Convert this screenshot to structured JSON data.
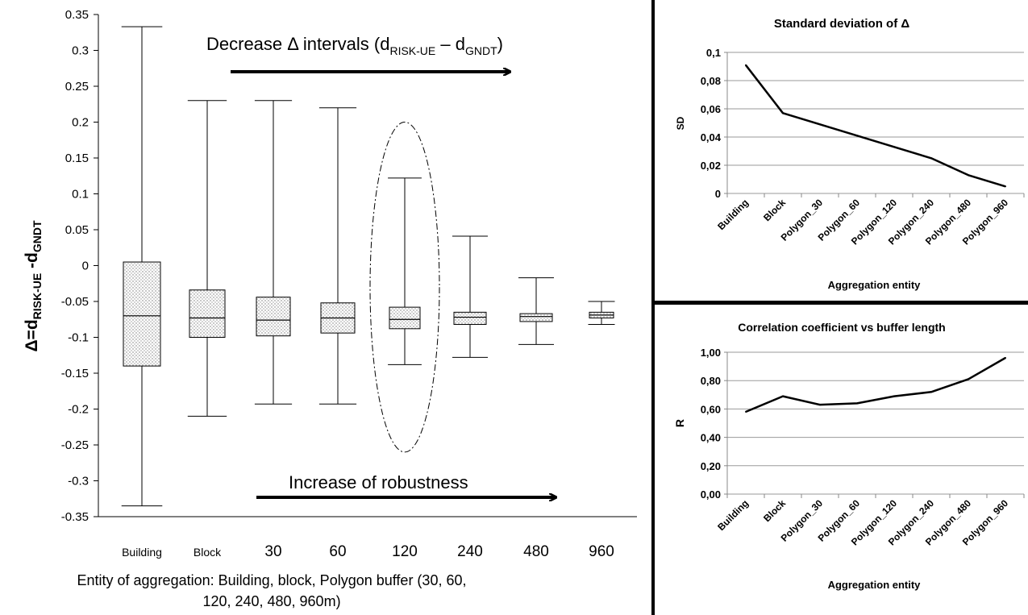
{
  "chart_data": [
    {
      "type": "box",
      "categories": [
        "Building",
        "Block",
        "30",
        "60",
        "120",
        "240",
        "480",
        "960"
      ],
      "boxes": [
        {
          "category": "Building",
          "min": -0.335,
          "q1": -0.14,
          "median": -0.07,
          "q3": 0.005,
          "max": 0.333
        },
        {
          "category": "Block",
          "min": -0.21,
          "q1": -0.1,
          "median": -0.073,
          "q3": -0.034,
          "max": 0.23
        },
        {
          "category": "30",
          "min": -0.193,
          "q1": -0.098,
          "median": -0.076,
          "q3": -0.044,
          "max": 0.23
        },
        {
          "category": "60",
          "min": -0.193,
          "q1": -0.094,
          "median": -0.073,
          "q3": -0.052,
          "max": 0.22
        },
        {
          "category": "120",
          "min": -0.138,
          "q1": -0.088,
          "median": -0.075,
          "q3": -0.058,
          "max": 0.122
        },
        {
          "category": "240",
          "min": -0.128,
          "q1": -0.082,
          "median": -0.072,
          "q3": -0.065,
          "max": 0.041
        },
        {
          "category": "480",
          "min": -0.11,
          "q1": -0.078,
          "median": -0.071,
          "q3": -0.067,
          "max": -0.017
        },
        {
          "category": "960",
          "min": -0.082,
          "q1": -0.073,
          "median": -0.069,
          "q3": -0.065,
          "max": -0.05
        }
      ],
      "ylim": [
        -0.35,
        0.35
      ],
      "yticks": [
        "0.35",
        "0.3",
        "0.25",
        "0.2",
        "0.15",
        "0.1",
        "0.05",
        "0",
        "-0.05",
        "-0.1",
        "-0.15",
        "-0.2",
        "-0.25",
        "-0.3",
        "-0.35"
      ],
      "ylabel_main": "Δ=d",
      "ylabel_sub1": "RISK-UE",
      "ylabel_mid": " -d",
      "ylabel_sub2": "GNDT",
      "xlabel_line1": "Entity of aggregation: Building, block, Polygon buffer (30, 60,",
      "xlabel_line2": "120, 240, 480, 960m)",
      "annotation_top_a": "Decrease Δ intervals (d",
      "annotation_top_sub1": "RISK-UE",
      "annotation_top_b": " – d",
      "annotation_top_sub2": "GNDT",
      "annotation_top_c": ")",
      "annotation_bottom": "Increase of robustness",
      "highlighted_category": "120"
    },
    {
      "type": "line",
      "title": "Standard deviation of Δ",
      "categories": [
        "Building",
        "Block",
        "Polygon_30",
        "Polygon_60",
        "Polygon_120",
        "Polygon_240",
        "Polygon_480",
        "Polygon_960"
      ],
      "values": [
        0.091,
        0.057,
        0.049,
        0.041,
        0.033,
        0.025,
        0.013,
        0.005
      ],
      "ylim": [
        0,
        0.1
      ],
      "yticks": [
        "0",
        "0,02",
        "0,04",
        "0,06",
        "0,08",
        "0,1"
      ],
      "ylabel": "SD",
      "xlabel": "Aggregation entity",
      "grid": true
    },
    {
      "type": "line",
      "title": "Correlation coefficient vs  buffer length",
      "categories": [
        "Building",
        "Block",
        "Polygon_30",
        "Polygon_60",
        "Polygon_120",
        "Polygon_240",
        "Polygon_480",
        "Polygon_960"
      ],
      "values": [
        0.58,
        0.69,
        0.63,
        0.64,
        0.69,
        0.72,
        0.81,
        0.96
      ],
      "ylim": [
        0,
        1
      ],
      "yticks": [
        "0,00",
        "0,20",
        "0,40",
        "0,60",
        "0,80",
        "1,00"
      ],
      "ylabel": "R",
      "xlabel": "Aggregation entity",
      "grid": true
    }
  ]
}
